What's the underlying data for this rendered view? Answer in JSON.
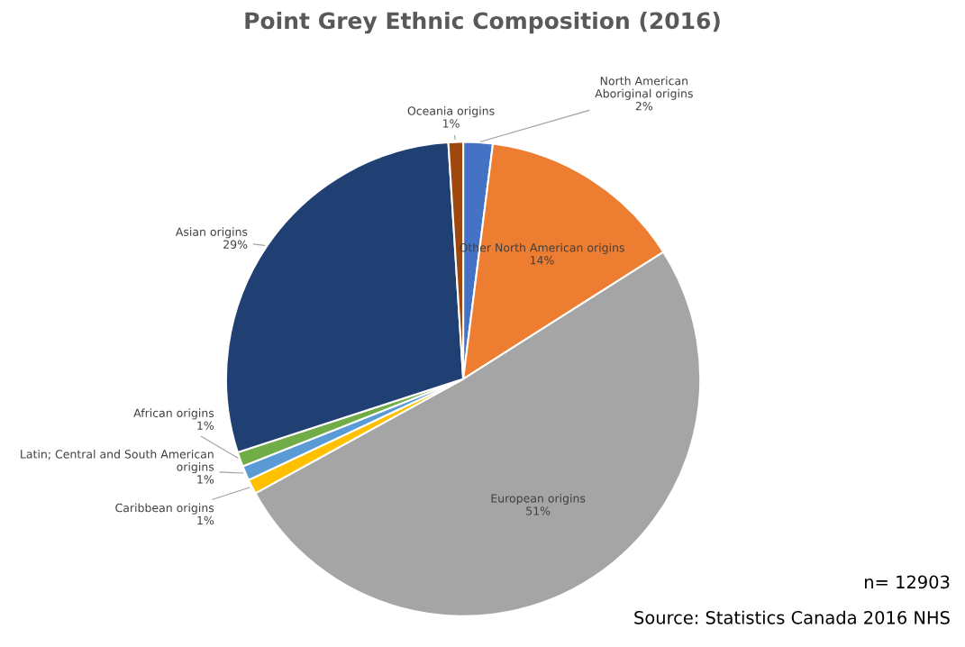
{
  "chart_data": {
    "type": "pie",
    "title": "Point Grey Ethnic Composition (2016)",
    "categories": [
      "North American Aboriginal origins",
      "Other North American origins",
      "European origins",
      "Caribbean origins",
      "Latin; Central and South American origins",
      "African origins",
      "Asian origins",
      "Oceania origins"
    ],
    "values": [
      2,
      14,
      51,
      1,
      1,
      1,
      29,
      1
    ],
    "value_labels": [
      "2%",
      "14%",
      "51%",
      "1%",
      "1%",
      "1%",
      "29%",
      "1%"
    ],
    "colors": [
      "#4472c4",
      "#ed7d31",
      "#a5a5a5",
      "#ffc000",
      "#5b9bd5",
      "#70ad47",
      "#203f73",
      "#9e480e"
    ],
    "legend": false,
    "annotations": [
      "n= 12903",
      "Source: Statistics Canada 2016 NHS"
    ]
  }
}
